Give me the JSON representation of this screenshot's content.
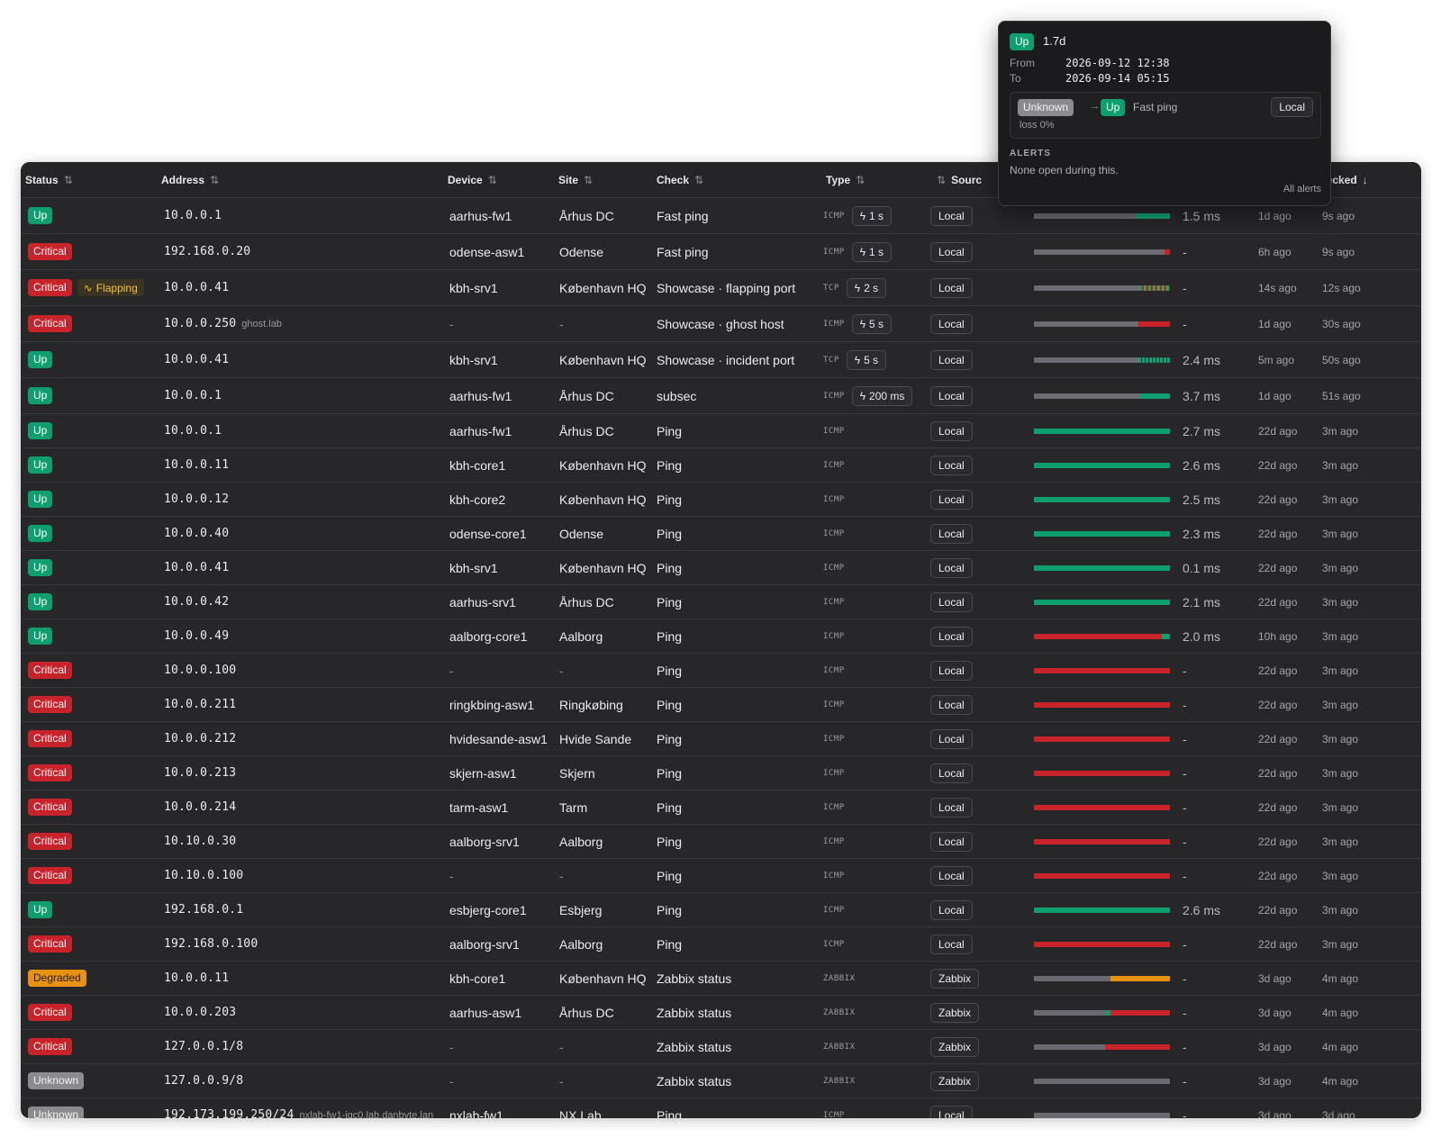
{
  "colors": {
    "up": "#0f9f6e",
    "critical": "#c8222a",
    "degraded": "#e8920e",
    "unknown": "#8a8a8f",
    "history_gray": "#6a6a70",
    "flapping": "#f2c23b"
  },
  "columns": {
    "status": "Status",
    "address": "Address",
    "device": "Device",
    "site": "Site",
    "check": "Check",
    "type": "Type",
    "source": "Sourc",
    "last_checked": "ast checked"
  },
  "tooltip": {
    "status": "Up",
    "duration": "1.7d",
    "from_label": "From",
    "from_value": "2026-09-12 12:38",
    "to_label": "To",
    "to_value": "2026-09-14 05:15",
    "event_from": "Unknown",
    "arrow": "→",
    "event_to": "Up",
    "event_check": "Fast ping",
    "event_source": "Local",
    "event_loss": "loss 0%",
    "alerts_heading": "ALERTS",
    "alerts_text": "None open during this.",
    "all_alerts_link": "All alerts"
  },
  "rows": [
    {
      "status": "Up",
      "flag": "",
      "address": "10.0.0.1",
      "address_note": "",
      "device": "aarhus-fw1",
      "site": "Århus DC",
      "check": "Fast ping",
      "type": "ICMP",
      "interval": "1 s",
      "source": "Local",
      "history": [
        {
          "c": "gray",
          "w": 0.75
        },
        {
          "c": "up",
          "w": 0.25
        }
      ],
      "latency": "1.5 ms",
      "since": "1d ago",
      "checked": "9s ago"
    },
    {
      "status": "Critical",
      "flag": "",
      "address": "192.168.0.20",
      "address_note": "",
      "device": "odense-asw1",
      "site": "Odense",
      "check": "Fast ping",
      "type": "ICMP",
      "interval": "1 s",
      "source": "Local",
      "history": [
        {
          "c": "gray",
          "w": 0.96
        },
        {
          "c": "critical",
          "w": 0.04
        }
      ],
      "latency": "-",
      "since": "6h ago",
      "checked": "9s ago"
    },
    {
      "status": "Critical",
      "flag": "Flapping",
      "address": "10.0.0.41",
      "address_note": "",
      "device": "kbh-srv1",
      "site": "København HQ",
      "check": "Showcase · flapping port",
      "type": "TCP",
      "interval": "2 s",
      "source": "Local",
      "history": [
        {
          "c": "gray",
          "w": 0.78
        },
        {
          "c": "flap",
          "w": 0.22
        }
      ],
      "latency": "-",
      "since": "14s ago",
      "checked": "12s ago"
    },
    {
      "status": "Critical",
      "flag": "",
      "address": "10.0.0.250",
      "address_note": "ghost.lab",
      "device": "-",
      "site": "-",
      "check": "Showcase · ghost host",
      "type": "ICMP",
      "interval": "5 s",
      "source": "Local",
      "history": [
        {
          "c": "gray",
          "w": 0.77
        },
        {
          "c": "critical",
          "w": 0.23
        }
      ],
      "latency": "-",
      "since": "1d ago",
      "checked": "30s ago"
    },
    {
      "status": "Up",
      "flag": "",
      "address": "10.0.0.41",
      "address_note": "",
      "device": "kbh-srv1",
      "site": "København HQ",
      "check": "Showcase · incident port",
      "type": "TCP",
      "interval": "5 s",
      "source": "Local",
      "history": [
        {
          "c": "gray",
          "w": 0.77
        },
        {
          "c": "ticks",
          "w": 0.23
        }
      ],
      "latency": "2.4 ms",
      "since": "5m ago",
      "checked": "50s ago"
    },
    {
      "status": "Up",
      "flag": "",
      "address": "10.0.0.1",
      "address_note": "",
      "device": "aarhus-fw1",
      "site": "Århus DC",
      "check": "subsec",
      "type": "ICMP",
      "interval": "200 ms",
      "source": "Local",
      "history": [
        {
          "c": "gray",
          "w": 0.78
        },
        {
          "c": "up",
          "w": 0.22
        }
      ],
      "latency": "3.7 ms",
      "since": "1d ago",
      "checked": "51s ago"
    },
    {
      "status": "Up",
      "flag": "",
      "address": "10.0.0.1",
      "address_note": "",
      "device": "aarhus-fw1",
      "site": "Århus DC",
      "check": "Ping",
      "type": "ICMP",
      "interval": "",
      "source": "Local",
      "history": [
        {
          "c": "up",
          "w": 1
        }
      ],
      "latency": "2.7 ms",
      "since": "22d ago",
      "checked": "3m ago"
    },
    {
      "status": "Up",
      "flag": "",
      "address": "10.0.0.11",
      "address_note": "",
      "device": "kbh-core1",
      "site": "København HQ",
      "check": "Ping",
      "type": "ICMP",
      "interval": "",
      "source": "Local",
      "history": [
        {
          "c": "up",
          "w": 1
        }
      ],
      "latency": "2.6 ms",
      "since": "22d ago",
      "checked": "3m ago"
    },
    {
      "status": "Up",
      "flag": "",
      "address": "10.0.0.12",
      "address_note": "",
      "device": "kbh-core2",
      "site": "København HQ",
      "check": "Ping",
      "type": "ICMP",
      "interval": "",
      "source": "Local",
      "history": [
        {
          "c": "up",
          "w": 1
        }
      ],
      "latency": "2.5 ms",
      "since": "22d ago",
      "checked": "3m ago"
    },
    {
      "status": "Up",
      "flag": "",
      "address": "10.0.0.40",
      "address_note": "",
      "device": "odense-core1",
      "site": "Odense",
      "check": "Ping",
      "type": "ICMP",
      "interval": "",
      "source": "Local",
      "history": [
        {
          "c": "up",
          "w": 1
        }
      ],
      "latency": "2.3 ms",
      "since": "22d ago",
      "checked": "3m ago"
    },
    {
      "status": "Up",
      "flag": "",
      "address": "10.0.0.41",
      "address_note": "",
      "device": "kbh-srv1",
      "site": "København HQ",
      "check": "Ping",
      "type": "ICMP",
      "interval": "",
      "source": "Local",
      "history": [
        {
          "c": "up",
          "w": 1
        }
      ],
      "latency": "0.1 ms",
      "since": "22d ago",
      "checked": "3m ago"
    },
    {
      "status": "Up",
      "flag": "",
      "address": "10.0.0.42",
      "address_note": "",
      "device": "aarhus-srv1",
      "site": "Århus DC",
      "check": "Ping",
      "type": "ICMP",
      "interval": "",
      "source": "Local",
      "history": [
        {
          "c": "up",
          "w": 1
        }
      ],
      "latency": "2.1 ms",
      "since": "22d ago",
      "checked": "3m ago"
    },
    {
      "status": "Up",
      "flag": "",
      "address": "10.0.0.49",
      "address_note": "",
      "device": "aalborg-core1",
      "site": "Aalborg",
      "check": "Ping",
      "type": "ICMP",
      "interval": "",
      "source": "Local",
      "history": [
        {
          "c": "critical",
          "w": 0.94
        },
        {
          "c": "up",
          "w": 0.06
        }
      ],
      "latency": "2.0 ms",
      "since": "10h ago",
      "checked": "3m ago"
    },
    {
      "status": "Critical",
      "flag": "",
      "address": "10.0.0.100",
      "address_note": "",
      "device": "-",
      "site": "-",
      "check": "Ping",
      "type": "ICMP",
      "interval": "",
      "source": "Local",
      "history": [
        {
          "c": "critical",
          "w": 1
        }
      ],
      "latency": "-",
      "since": "22d ago",
      "checked": "3m ago"
    },
    {
      "status": "Critical",
      "flag": "",
      "address": "10.0.0.211",
      "address_note": "",
      "device": "ringkbing-asw1",
      "site": "Ringkøbing",
      "check": "Ping",
      "type": "ICMP",
      "interval": "",
      "source": "Local",
      "history": [
        {
          "c": "critical",
          "w": 1
        }
      ],
      "latency": "-",
      "since": "22d ago",
      "checked": "3m ago"
    },
    {
      "status": "Critical",
      "flag": "",
      "address": "10.0.0.212",
      "address_note": "",
      "device": "hvidesande-asw1",
      "site": "Hvide Sande",
      "check": "Ping",
      "type": "ICMP",
      "interval": "",
      "source": "Local",
      "history": [
        {
          "c": "critical",
          "w": 1
        }
      ],
      "latency": "-",
      "since": "22d ago",
      "checked": "3m ago"
    },
    {
      "status": "Critical",
      "flag": "",
      "address": "10.0.0.213",
      "address_note": "",
      "device": "skjern-asw1",
      "site": "Skjern",
      "check": "Ping",
      "type": "ICMP",
      "interval": "",
      "source": "Local",
      "history": [
        {
          "c": "critical",
          "w": 1
        }
      ],
      "latency": "-",
      "since": "22d ago",
      "checked": "3m ago"
    },
    {
      "status": "Critical",
      "flag": "",
      "address": "10.0.0.214",
      "address_note": "",
      "device": "tarm-asw1",
      "site": "Tarm",
      "check": "Ping",
      "type": "ICMP",
      "interval": "",
      "source": "Local",
      "history": [
        {
          "c": "critical",
          "w": 1
        }
      ],
      "latency": "-",
      "since": "22d ago",
      "checked": "3m ago"
    },
    {
      "status": "Critical",
      "flag": "",
      "address": "10.10.0.30",
      "address_note": "",
      "device": "aalborg-srv1",
      "site": "Aalborg",
      "check": "Ping",
      "type": "ICMP",
      "interval": "",
      "source": "Local",
      "history": [
        {
          "c": "critical",
          "w": 1
        }
      ],
      "latency": "-",
      "since": "22d ago",
      "checked": "3m ago"
    },
    {
      "status": "Critical",
      "flag": "",
      "address": "10.10.0.100",
      "address_note": "",
      "device": "-",
      "site": "-",
      "check": "Ping",
      "type": "ICMP",
      "interval": "",
      "source": "Local",
      "history": [
        {
          "c": "critical",
          "w": 1
        }
      ],
      "latency": "-",
      "since": "22d ago",
      "checked": "3m ago"
    },
    {
      "status": "Up",
      "flag": "",
      "address": "192.168.0.1",
      "address_note": "",
      "device": "esbjerg-core1",
      "site": "Esbjerg",
      "check": "Ping",
      "type": "ICMP",
      "interval": "",
      "source": "Local",
      "history": [
        {
          "c": "up",
          "w": 1
        }
      ],
      "latency": "2.6 ms",
      "since": "22d ago",
      "checked": "3m ago"
    },
    {
      "status": "Critical",
      "flag": "",
      "address": "192.168.0.100",
      "address_note": "",
      "device": "aalborg-srv1",
      "site": "Aalborg",
      "check": "Ping",
      "type": "ICMP",
      "interval": "",
      "source": "Local",
      "history": [
        {
          "c": "critical",
          "w": 1
        }
      ],
      "latency": "-",
      "since": "22d ago",
      "checked": "3m ago"
    },
    {
      "status": "Degraded",
      "flag": "",
      "address": "10.0.0.11",
      "address_note": "",
      "device": "kbh-core1",
      "site": "København HQ",
      "check": "Zabbix status",
      "type": "ZABBIX",
      "interval": "",
      "source": "Zabbix",
      "history": [
        {
          "c": "gray",
          "w": 0.56
        },
        {
          "c": "degraded",
          "w": 0.44
        }
      ],
      "latency": "-",
      "since": "3d ago",
      "checked": "4m ago"
    },
    {
      "status": "Critical",
      "flag": "",
      "address": "10.0.0.203",
      "address_note": "",
      "device": "aarhus-asw1",
      "site": "Århus DC",
      "check": "Zabbix status",
      "type": "ZABBIX",
      "interval": "",
      "source": "Zabbix",
      "history": [
        {
          "c": "gray",
          "w": 0.53
        },
        {
          "c": "up",
          "w": 0.03
        },
        {
          "c": "critical",
          "w": 0.44
        }
      ],
      "latency": "-",
      "since": "3d ago",
      "checked": "4m ago"
    },
    {
      "status": "Critical",
      "flag": "",
      "address": "127.0.0.1/8",
      "address_note": "",
      "device": "-",
      "site": "-",
      "check": "Zabbix status",
      "type": "ZABBIX",
      "interval": "",
      "source": "Zabbix",
      "history": [
        {
          "c": "gray",
          "w": 0.52
        },
        {
          "c": "critical",
          "w": 0.48
        }
      ],
      "latency": "-",
      "since": "3d ago",
      "checked": "4m ago"
    },
    {
      "status": "Unknown",
      "flag": "",
      "address": "127.0.0.9/8",
      "address_note": "",
      "device": "-",
      "site": "-",
      "check": "Zabbix status",
      "type": "ZABBIX",
      "interval": "",
      "source": "Zabbix",
      "history": [
        {
          "c": "gray",
          "w": 1
        }
      ],
      "latency": "-",
      "since": "3d ago",
      "checked": "4m ago"
    },
    {
      "status": "Unknown",
      "flag": "",
      "address": "192.173.199.250/24",
      "address_note": "nxlab-fw1-igc0.lab.danbyte.lan",
      "device": "nxlab-fw1",
      "site": "NX Lab",
      "check": "Ping",
      "type": "ICMP",
      "interval": "",
      "source": "Local",
      "history": [
        {
          "c": "gray",
          "w": 1
        }
      ],
      "latency": "-",
      "since": "3d ago",
      "checked": "3d ago"
    }
  ]
}
